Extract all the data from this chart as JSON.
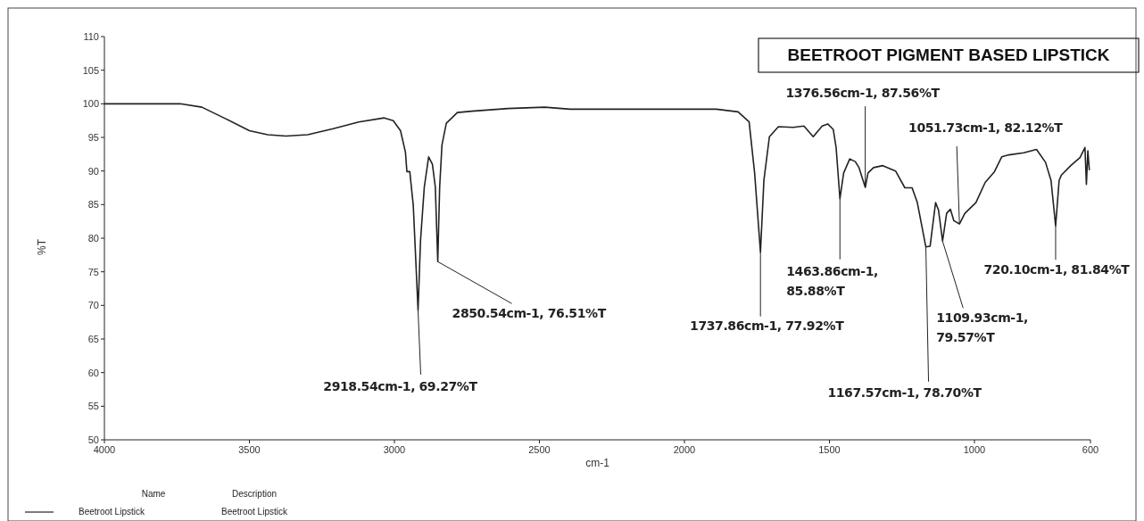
{
  "chart_data": {
    "type": "line",
    "title": "BEETROOT PIGMENT BASED LIPSTICK",
    "xlabel": "cm-1",
    "ylabel": "%T",
    "xlim": [
      4000,
      600
    ],
    "xticks": [
      4000,
      3500,
      3000,
      2500,
      2000,
      1500,
      1000,
      600
    ],
    "ylim": [
      50,
      110
    ],
    "yticks": [
      50,
      55,
      60,
      65,
      70,
      75,
      80,
      85,
      90,
      95,
      100,
      105,
      110
    ],
    "grid": false,
    "legend": "bottom left",
    "marker": "none",
    "line_style": "solid",
    "series": [
      {
        "name": "Beetroot Lipstick",
        "color": "#222222",
        "x": [
          4000,
          3739,
          3664,
          3588,
          3500,
          3437,
          3374,
          3299,
          3211,
          3123,
          3035,
          3004,
          2979,
          2962,
          2957,
          2947,
          2935,
          2918.54,
          2910,
          2897,
          2882,
          2869,
          2859,
          2850.54,
          2844,
          2836,
          2821,
          2783,
          2733,
          2608,
          2482,
          2395,
          2142,
          1890,
          1815,
          1777,
          1758,
          1737.86,
          1726,
          1707,
          1676,
          1625,
          1588,
          1556,
          1525,
          1506,
          1487,
          1477,
          1463.86,
          1451,
          1430,
          1411,
          1398,
          1376.56,
          1367,
          1348,
          1316,
          1272,
          1240,
          1215,
          1197,
          1167.57,
          1153,
          1134,
          1124,
          1109.93,
          1096,
          1083,
          1071,
          1051.73,
          1033,
          995,
          963,
          931,
          906,
          881,
          830,
          786,
          755,
          736,
          720.1,
          708,
          700,
          668,
          636,
          619,
          614,
          609,
          604
        ],
        "values": [
          100,
          100,
          99.5,
          97.9,
          96.0,
          95.4,
          95.2,
          95.4,
          96.3,
          97.3,
          97.9,
          97.5,
          96.0,
          92.8,
          89.9,
          89.9,
          84.9,
          69.27,
          79.6,
          87.6,
          92.1,
          91.0,
          87.6,
          76.51,
          87.6,
          93.9,
          97.1,
          98.7,
          98.9,
          99.3,
          99.5,
          99.2,
          99.2,
          99.2,
          98.8,
          97.3,
          89.7,
          77.92,
          88.6,
          95.1,
          96.6,
          96.5,
          96.7,
          95.1,
          96.7,
          97.0,
          96.2,
          93.5,
          85.88,
          89.7,
          91.8,
          91.4,
          90.5,
          87.56,
          89.7,
          90.5,
          90.8,
          90.0,
          87.5,
          87.5,
          85.3,
          78.7,
          78.8,
          85.3,
          84.2,
          79.57,
          83.7,
          84.3,
          82.6,
          82.12,
          83.7,
          85.3,
          88.3,
          89.9,
          92.1,
          92.4,
          92.7,
          93.2,
          91.3,
          88.6,
          81.84,
          88.6,
          89.4,
          90.8,
          92.0,
          93.5,
          88.0,
          93.0,
          90.2
        ]
      }
    ],
    "annotations": [
      {
        "text": "2918.54cm-1, 69.27%T",
        "x": 2918.54,
        "y": 69.27
      },
      {
        "text": "2850.54cm-1, 76.51%T",
        "x": 2850.54,
        "y": 76.51
      },
      {
        "text": "1737.86cm-1, 77.92%T",
        "x": 1737.86,
        "y": 77.92
      },
      {
        "text": "1463.86cm-1, 85.88%T",
        "x": 1463.86,
        "y": 85.88
      },
      {
        "text": "1376.56cm-1, 87.56%T",
        "x": 1376.56,
        "y": 87.56
      },
      {
        "text": "1167.57cm-1, 78.70%T",
        "x": 1167.57,
        "y": 78.7
      },
      {
        "text": "1109.93cm-1, 79.57%T",
        "x": 1109.93,
        "y": 79.57
      },
      {
        "text": "1051.73cm-1, 82.12%T",
        "x": 1051.73,
        "y": 82.12
      },
      {
        "text": "720.10cm-1, 81.84%T",
        "x": 720.1,
        "y": 81.84
      },
      "Name",
      "Description",
      "Beetroot Lipstick"
    ]
  }
}
